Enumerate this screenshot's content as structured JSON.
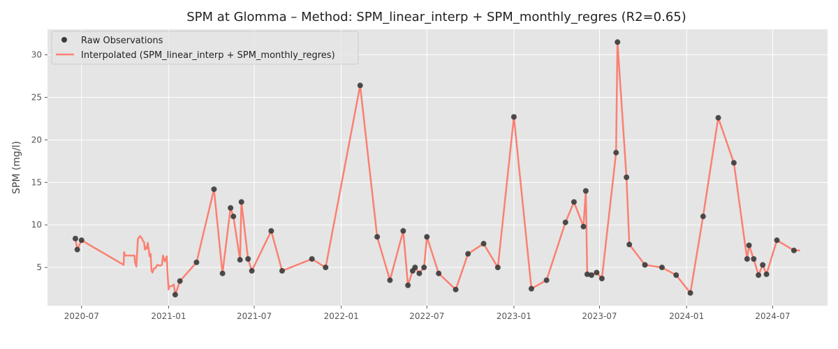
{
  "chart_data": {
    "type": "line",
    "title": "SPM at Glomma – Method: SPM_linear_interp + SPM_monthly_regres (R2=0.65)",
    "xlabel": "",
    "ylabel": "SPM (mg/l)",
    "xlim": [
      "2020-04-20",
      "2024-10-25"
    ],
    "ylim": [
      0.5,
      33
    ],
    "x_ticks": [
      "2020-07-01",
      "2021-01-01",
      "2021-07-01",
      "2022-01-01",
      "2022-07-01",
      "2023-01-01",
      "2023-07-01",
      "2024-01-01",
      "2024-07-01"
    ],
    "x_tick_labels": [
      "2020-07",
      "2021-01",
      "2021-07",
      "2022-01",
      "2022-07",
      "2023-01",
      "2023-07",
      "2024-01",
      "2024-07"
    ],
    "y_ticks": [
      5,
      10,
      15,
      20,
      25,
      30
    ],
    "y_tick_labels": [
      "5",
      "10",
      "15",
      "20",
      "25",
      "30"
    ],
    "grid": true,
    "legend_position": "top-left",
    "colors": {
      "line": "#fa8072",
      "points": "#3b3b3b",
      "background": "#e5e5e5",
      "grid": "#ffffff"
    },
    "series": [
      {
        "name": "Raw Observations",
        "kind": "scatter",
        "x": [
          "2020-06-18",
          "2020-06-22",
          "2020-07-01",
          "2021-01-15",
          "2021-01-25",
          "2021-03-01",
          "2021-04-07",
          "2021-04-25",
          "2021-05-12",
          "2021-05-18",
          "2021-06-01",
          "2021-06-04",
          "2021-06-18",
          "2021-06-26",
          "2021-08-06",
          "2021-08-29",
          "2021-10-31",
          "2021-11-29",
          "2022-02-10",
          "2022-03-18",
          "2022-04-14",
          "2022-05-12",
          "2022-05-22",
          "2022-06-01",
          "2022-06-06",
          "2022-06-15",
          "2022-06-25",
          "2022-07-01",
          "2022-07-26",
          "2022-08-31",
          "2022-09-26",
          "2022-10-29",
          "2022-11-28",
          "2023-01-01",
          "2023-02-07",
          "2023-03-11",
          "2023-04-20",
          "2023-05-08",
          "2023-05-28",
          "2023-06-02",
          "2023-06-05",
          "2023-06-14",
          "2023-06-25",
          "2023-07-06",
          "2023-08-05",
          "2023-08-08",
          "2023-08-27",
          "2023-09-02",
          "2023-10-05",
          "2023-11-10",
          "2023-12-10",
          "2024-01-09",
          "2024-02-05",
          "2024-03-08",
          "2024-04-10",
          "2024-05-08",
          "2024-05-12",
          "2024-05-22",
          "2024-06-01",
          "2024-06-10",
          "2024-06-18",
          "2024-07-10",
          "2024-08-15"
        ],
        "y": [
          8.4,
          7.1,
          8.2,
          1.8,
          3.4,
          5.6,
          14.2,
          4.3,
          12.0,
          11.0,
          5.9,
          12.7,
          6.0,
          4.6,
          9.3,
          4.6,
          6.0,
          5.0,
          26.4,
          8.6,
          3.5,
          9.3,
          2.9,
          4.6,
          5.0,
          4.3,
          5.0,
          8.6,
          4.3,
          2.4,
          6.6,
          7.8,
          5.0,
          22.7,
          2.5,
          3.5,
          10.3,
          12.7,
          9.8,
          14.0,
          4.2,
          4.1,
          4.4,
          3.7,
          18.5,
          31.5,
          15.6,
          7.7,
          5.3,
          5.0,
          4.1,
          2.0,
          11.0,
          22.6,
          17.3,
          6.0,
          7.6,
          6.0,
          4.1,
          5.3,
          4.2,
          8.2,
          7.0
        ]
      },
      {
        "name": "Interpolated (SPM_linear_interp + SPM_monthly_regres)",
        "kind": "line",
        "x": [
          "2020-06-18",
          "2020-06-22",
          "2020-07-01",
          "2020-09-28",
          "2020-09-29",
          "2020-10-01",
          "2020-10-21",
          "2020-10-22",
          "2020-10-25",
          "2020-10-28",
          "2020-10-30",
          "2020-11-02",
          "2020-11-04",
          "2020-11-06",
          "2020-11-08",
          "2020-11-10",
          "2020-11-12",
          "2020-11-14",
          "2020-11-16",
          "2020-11-18",
          "2020-11-20",
          "2020-11-22",
          "2020-11-24",
          "2020-11-26",
          "2020-11-28",
          "2020-12-01",
          "2020-12-04",
          "2020-12-08",
          "2020-12-14",
          "2020-12-18",
          "2020-12-20",
          "2020-12-22",
          "2020-12-24",
          "2020-12-26",
          "2020-12-28",
          "2020-12-30",
          "2021-01-01",
          "2021-01-03",
          "2021-01-08",
          "2021-01-12",
          "2021-01-15",
          "2021-01-25",
          "2021-03-01",
          "2021-04-07",
          "2021-04-25",
          "2021-05-12",
          "2021-05-18",
          "2021-06-01",
          "2021-06-04",
          "2021-06-18",
          "2021-06-26",
          "2021-08-06",
          "2021-08-29",
          "2021-10-31",
          "2021-11-29",
          "2022-02-10",
          "2022-03-18",
          "2022-04-14",
          "2022-05-12",
          "2022-05-22",
          "2022-06-01",
          "2022-06-06",
          "2022-06-15",
          "2022-06-25",
          "2022-07-01",
          "2022-07-26",
          "2022-08-31",
          "2022-09-26",
          "2022-10-29",
          "2022-11-28",
          "2023-01-01",
          "2023-02-07",
          "2023-03-11",
          "2023-04-20",
          "2023-05-08",
          "2023-05-28",
          "2023-06-02",
          "2023-06-05",
          "2023-06-14",
          "2023-06-25",
          "2023-07-06",
          "2023-08-05",
          "2023-08-08",
          "2023-08-27",
          "2023-09-02",
          "2023-10-05",
          "2023-11-10",
          "2023-12-10",
          "2024-01-09",
          "2024-02-05",
          "2024-03-08",
          "2024-04-10",
          "2024-05-08",
          "2024-05-12",
          "2024-05-22",
          "2024-06-01",
          "2024-06-10",
          "2024-06-18",
          "2024-07-10",
          "2024-08-15",
          "2024-08-28"
        ],
        "y": [
          8.4,
          7.1,
          8.2,
          5.3,
          6.8,
          6.4,
          6.4,
          5.6,
          5.1,
          8.3,
          8.5,
          8.7,
          8.5,
          8.4,
          8.1,
          8.0,
          7.1,
          7.4,
          7.2,
          7.9,
          7.1,
          6.3,
          6.6,
          4.6,
          4.4,
          4.9,
          4.9,
          5.3,
          5.2,
          5.3,
          6.4,
          6.1,
          5.7,
          6.0,
          6.3,
          4.1,
          2.4,
          2.8,
          2.8,
          3.0,
          1.8,
          3.4,
          5.6,
          14.2,
          4.3,
          12.0,
          11.0,
          5.9,
          12.7,
          6.0,
          4.6,
          9.3,
          4.6,
          6.0,
          5.0,
          26.4,
          8.6,
          3.5,
          9.3,
          2.9,
          4.6,
          5.0,
          4.3,
          5.0,
          8.6,
          4.3,
          2.4,
          6.6,
          7.8,
          5.0,
          22.7,
          2.5,
          3.5,
          10.3,
          12.7,
          9.8,
          14.0,
          4.2,
          4.1,
          4.4,
          3.7,
          18.5,
          31.5,
          15.6,
          7.7,
          5.3,
          5.0,
          4.1,
          2.0,
          11.0,
          22.6,
          17.3,
          6.0,
          7.6,
          6.0,
          4.1,
          5.3,
          4.2,
          8.2,
          7.0,
          7.0
        ]
      }
    ]
  }
}
